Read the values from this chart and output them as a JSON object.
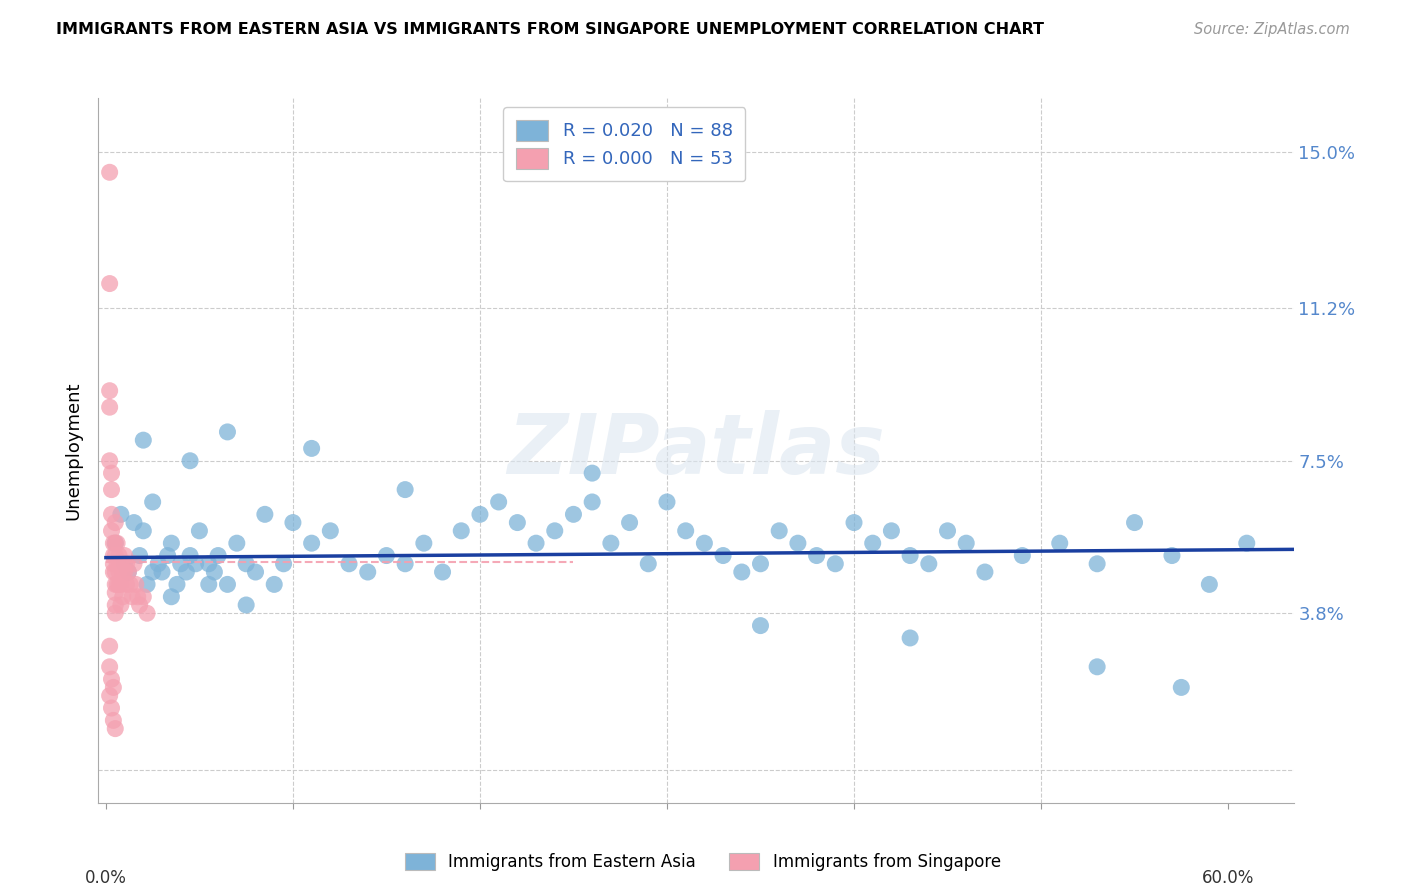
{
  "title": "IMMIGRANTS FROM EASTERN ASIA VS IMMIGRANTS FROM SINGAPORE UNEMPLOYMENT CORRELATION CHART",
  "source": "Source: ZipAtlas.com",
  "ylabel": "Unemployment",
  "yticks": [
    0.0,
    0.038,
    0.075,
    0.112,
    0.15
  ],
  "ytick_labels": [
    "",
    "3.8%",
    "7.5%",
    "11.2%",
    "15.0%"
  ],
  "ymin": -0.008,
  "ymax": 0.163,
  "xmin": -0.004,
  "xmax": 0.635,
  "legend_r1": "R = 0.020",
  "legend_n1": "N = 88",
  "legend_r2": "R = 0.000",
  "legend_n2": "N = 53",
  "color_blue": "#7EB3D8",
  "color_pink": "#F4A0B0",
  "trend_blue_color": "#1A3FA0",
  "trend_pink_color": "#F4A0B0",
  "watermark": "ZIPatlas",
  "blue_x": [
    0.005,
    0.008,
    0.01,
    0.012,
    0.015,
    0.018,
    0.02,
    0.022,
    0.025,
    0.028,
    0.03,
    0.033,
    0.035,
    0.038,
    0.04,
    0.043,
    0.045,
    0.048,
    0.05,
    0.055,
    0.058,
    0.06,
    0.065,
    0.07,
    0.075,
    0.08,
    0.085,
    0.09,
    0.095,
    0.1,
    0.11,
    0.12,
    0.13,
    0.14,
    0.15,
    0.16,
    0.17,
    0.18,
    0.19,
    0.2,
    0.21,
    0.22,
    0.23,
    0.24,
    0.25,
    0.26,
    0.27,
    0.28,
    0.29,
    0.3,
    0.31,
    0.32,
    0.33,
    0.34,
    0.35,
    0.36,
    0.37,
    0.38,
    0.39,
    0.4,
    0.41,
    0.42,
    0.43,
    0.44,
    0.45,
    0.46,
    0.47,
    0.49,
    0.51,
    0.53,
    0.55,
    0.57,
    0.59,
    0.61,
    0.02,
    0.045,
    0.065,
    0.11,
    0.16,
    0.26,
    0.35,
    0.43,
    0.53,
    0.575,
    0.025,
    0.035,
    0.055,
    0.075
  ],
  "blue_y": [
    0.055,
    0.062,
    0.05,
    0.048,
    0.06,
    0.052,
    0.058,
    0.045,
    0.065,
    0.05,
    0.048,
    0.052,
    0.055,
    0.045,
    0.05,
    0.048,
    0.052,
    0.05,
    0.058,
    0.05,
    0.048,
    0.052,
    0.045,
    0.055,
    0.05,
    0.048,
    0.062,
    0.045,
    0.05,
    0.06,
    0.055,
    0.058,
    0.05,
    0.048,
    0.052,
    0.05,
    0.055,
    0.048,
    0.058,
    0.062,
    0.065,
    0.06,
    0.055,
    0.058,
    0.062,
    0.065,
    0.055,
    0.06,
    0.05,
    0.065,
    0.058,
    0.055,
    0.052,
    0.048,
    0.05,
    0.058,
    0.055,
    0.052,
    0.05,
    0.06,
    0.055,
    0.058,
    0.052,
    0.05,
    0.058,
    0.055,
    0.048,
    0.052,
    0.055,
    0.05,
    0.06,
    0.052,
    0.045,
    0.055,
    0.08,
    0.075,
    0.082,
    0.078,
    0.068,
    0.072,
    0.035,
    0.032,
    0.025,
    0.02,
    0.048,
    0.042,
    0.045,
    0.04
  ],
  "pink_x": [
    0.002,
    0.002,
    0.002,
    0.002,
    0.002,
    0.003,
    0.003,
    0.003,
    0.003,
    0.004,
    0.004,
    0.004,
    0.004,
    0.005,
    0.005,
    0.005,
    0.005,
    0.005,
    0.005,
    0.005,
    0.005,
    0.006,
    0.006,
    0.006,
    0.007,
    0.007,
    0.007,
    0.008,
    0.008,
    0.008,
    0.009,
    0.009,
    0.01,
    0.01,
    0.011,
    0.011,
    0.012,
    0.013,
    0.014,
    0.015,
    0.016,
    0.017,
    0.018,
    0.02,
    0.022,
    0.002,
    0.002,
    0.002,
    0.003,
    0.003,
    0.004,
    0.004,
    0.005
  ],
  "pink_y": [
    0.145,
    0.118,
    0.092,
    0.088,
    0.075,
    0.072,
    0.068,
    0.062,
    0.058,
    0.055,
    0.052,
    0.05,
    0.048,
    0.06,
    0.055,
    0.052,
    0.048,
    0.045,
    0.043,
    0.04,
    0.038,
    0.055,
    0.05,
    0.045,
    0.052,
    0.048,
    0.045,
    0.05,
    0.045,
    0.04,
    0.048,
    0.042,
    0.052,
    0.048,
    0.05,
    0.045,
    0.048,
    0.045,
    0.042,
    0.05,
    0.045,
    0.042,
    0.04,
    0.042,
    0.038,
    0.03,
    0.025,
    0.018,
    0.022,
    0.015,
    0.02,
    0.012,
    0.01
  ],
  "blue_trend_x": [
    0.0,
    0.635
  ],
  "blue_trend_y": [
    0.0515,
    0.0535
  ],
  "pink_trend_x": [
    0.0,
    0.25
  ],
  "pink_trend_y": [
    0.0505,
    0.0505
  ],
  "xtick_positions": [
    0.0,
    0.1,
    0.2,
    0.3,
    0.4,
    0.5,
    0.6
  ]
}
